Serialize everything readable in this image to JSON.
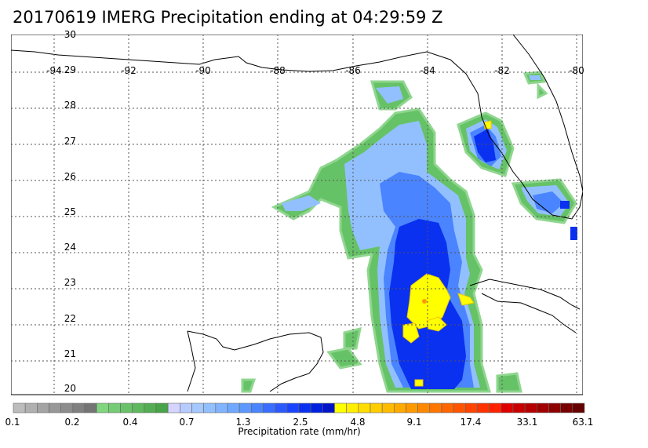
{
  "title": "20170619 IMERG Precipitation ending at 04:29:59 Z",
  "map": {
    "lat_labels": [
      "30",
      "29",
      "28",
      "27",
      "26",
      "25",
      "24",
      "23",
      "22",
      "21",
      "20"
    ],
    "lon_labels": [
      "-94",
      "-92",
      "-90",
      "-88",
      "-86",
      "-84",
      "-82",
      "-80"
    ],
    "grid": true,
    "colors": {
      "land_outline": "#000000",
      "grid": "#555555"
    }
  },
  "colorbar": {
    "tick_labels": [
      "0.1",
      "0.2",
      "0.4",
      "0.7",
      "1.3",
      "2.5",
      "4.8",
      "9.1",
      "17.4",
      "33.1",
      "63.1"
    ],
    "units_label": "Precipitation rate (mm/hr)",
    "colors": [
      "#bcbcbc",
      "#b0b0b0",
      "#a4a4a4",
      "#989898",
      "#8c8c8c",
      "#808080",
      "#747474",
      "#7fd67f",
      "#74cc74",
      "#69c269",
      "#5eb85e",
      "#53ae53",
      "#48a448",
      "#d4d4ff",
      "#b6ccff",
      "#a4c8ff",
      "#92c0ff",
      "#80b4ff",
      "#6ea8ff",
      "#5c98ff",
      "#4a84ff",
      "#3a6eff",
      "#2a5aff",
      "#1a44ff",
      "#0a30f0",
      "#0020e0",
      "#0014c8",
      "#ffff00",
      "#ffee00",
      "#ffdd00",
      "#ffcc00",
      "#ffbb00",
      "#ffaa00",
      "#ff9900",
      "#ff8800",
      "#ff7700",
      "#ff6600",
      "#ff5500",
      "#ff4400",
      "#ff3300",
      "#ff2200",
      "#dd0000",
      "#c80000",
      "#b40000",
      "#a00000",
      "#8c0000",
      "#780000",
      "#640000"
    ]
  }
}
